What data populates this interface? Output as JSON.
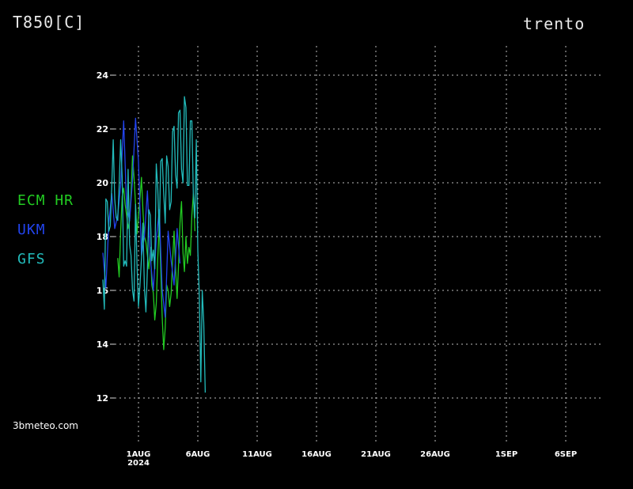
{
  "header": {
    "variable": "T850[C]",
    "location": "trento"
  },
  "credit": "3bmeteo.com",
  "chart_data": {
    "type": "line",
    "title": "T850[C]",
    "xlabel": "",
    "ylabel": "",
    "ylim": [
      11.5,
      25
    ],
    "yticks": [
      12,
      14,
      16,
      18,
      20,
      22,
      24
    ],
    "xlim": [
      "2024-07-28T12:00",
      "2024-09-09T00:00"
    ],
    "xticks": [
      {
        "date": "2024-08-01",
        "label": "1AUG",
        "sublabel": "2024"
      },
      {
        "date": "2024-08-06",
        "label": "6AUG",
        "sublabel": ""
      },
      {
        "date": "2024-08-11",
        "label": "11AUG",
        "sublabel": ""
      },
      {
        "date": "2024-08-16",
        "label": "16AUG",
        "sublabel": ""
      },
      {
        "date": "2024-08-21",
        "label": "21AUG",
        "sublabel": ""
      },
      {
        "date": "2024-08-26",
        "label": "26AUG",
        "sublabel": ""
      },
      {
        "date": "2024-09-01",
        "label": "1SEP",
        "sublabel": ""
      },
      {
        "date": "2024-09-06",
        "label": "6SEP",
        "sublabel": ""
      }
    ],
    "grid": true,
    "legend_position": "left",
    "series": [
      {
        "name": "ECM HR",
        "color": "#22cc22",
        "points": [
          [
            "2024-07-30T06:00",
            17.2
          ],
          [
            "2024-07-30T09:00",
            16.5
          ],
          [
            "2024-07-30T12:00",
            18.2
          ],
          [
            "2024-07-30T15:00",
            19.5
          ],
          [
            "2024-07-30T18:00",
            19.8
          ],
          [
            "2024-07-30T21:00",
            19.2
          ],
          [
            "2024-07-31T00:00",
            18.8
          ],
          [
            "2024-07-31T03:00",
            18.3
          ],
          [
            "2024-07-31T06:00",
            18.6
          ],
          [
            "2024-07-31T09:00",
            19.6
          ],
          [
            "2024-07-31T12:00",
            21.0
          ],
          [
            "2024-07-31T15:00",
            20.2
          ],
          [
            "2024-07-31T18:00",
            19.2
          ],
          [
            "2024-07-31T21:00",
            18.1
          ],
          [
            "2024-08-01T00:00",
            18.8
          ],
          [
            "2024-08-01T03:00",
            19.4
          ],
          [
            "2024-08-01T06:00",
            20.2
          ],
          [
            "2024-08-01T09:00",
            19.0
          ],
          [
            "2024-08-01T12:00",
            18.0
          ],
          [
            "2024-08-01T15:00",
            17.8
          ],
          [
            "2024-08-01T18:00",
            17.3
          ],
          [
            "2024-08-01T21:00",
            16.8
          ],
          [
            "2024-08-02T00:00",
            17.6
          ],
          [
            "2024-08-02T03:00",
            16.2
          ],
          [
            "2024-08-02T06:00",
            15.9
          ],
          [
            "2024-08-02T09:00",
            14.9
          ],
          [
            "2024-08-02T12:00",
            15.5
          ],
          [
            "2024-08-02T15:00",
            17.2
          ],
          [
            "2024-08-02T18:00",
            18.5
          ],
          [
            "2024-08-02T21:00",
            16.8
          ],
          [
            "2024-08-03T00:00",
            15.0
          ],
          [
            "2024-08-03T03:00",
            13.8
          ],
          [
            "2024-08-03T06:00",
            14.6
          ],
          [
            "2024-08-03T09:00",
            16.2
          ],
          [
            "2024-08-03T12:00",
            16.0
          ],
          [
            "2024-08-03T15:00",
            15.4
          ],
          [
            "2024-08-03T18:00",
            15.9
          ],
          [
            "2024-08-03T21:00",
            17.1
          ],
          [
            "2024-08-04T00:00",
            18.2
          ],
          [
            "2024-08-04T03:00",
            16.8
          ],
          [
            "2024-08-04T06:00",
            15.7
          ],
          [
            "2024-08-04T09:00",
            16.9
          ],
          [
            "2024-08-04T12:00",
            18.5
          ],
          [
            "2024-08-04T15:00",
            19.3
          ],
          [
            "2024-08-04T18:00",
            17.4
          ],
          [
            "2024-08-04T21:00",
            16.7
          ],
          [
            "2024-08-05T00:00",
            18.0
          ],
          [
            "2024-08-05T03:00",
            17.0
          ],
          [
            "2024-08-05T06:00",
            17.6
          ],
          [
            "2024-08-05T09:00",
            17.3
          ],
          [
            "2024-08-05T12:00",
            18.8
          ],
          [
            "2024-08-05T15:00",
            19.6
          ],
          [
            "2024-08-05T18:00",
            18.2
          ]
        ]
      },
      {
        "name": "UKM",
        "color": "#2244ee",
        "points": [
          [
            "2024-07-29T00:00",
            17.4
          ],
          [
            "2024-07-29T06:00",
            16.1
          ],
          [
            "2024-07-29T12:00",
            18.5
          ],
          [
            "2024-07-29T18:00",
            19.6
          ],
          [
            "2024-07-30T00:00",
            18.3
          ],
          [
            "2024-07-30T06:00",
            18.8
          ],
          [
            "2024-07-30T12:00",
            19.9
          ],
          [
            "2024-07-30T18:00",
            22.3
          ],
          [
            "2024-07-31T00:00",
            19.1
          ],
          [
            "2024-07-31T06:00",
            18.6
          ],
          [
            "2024-07-31T12:00",
            20.1
          ],
          [
            "2024-07-31T18:00",
            22.4
          ],
          [
            "2024-08-01T00:00",
            20.8
          ],
          [
            "2024-08-01T06:00",
            17.3
          ],
          [
            "2024-08-01T12:00",
            18.0
          ],
          [
            "2024-08-01T18:00",
            19.7
          ],
          [
            "2024-08-02T00:00",
            17.2
          ],
          [
            "2024-08-02T06:00",
            16.0
          ],
          [
            "2024-08-02T12:00",
            17.9
          ],
          [
            "2024-08-02T18:00",
            19.0
          ],
          [
            "2024-08-03T00:00",
            16.0
          ],
          [
            "2024-08-03T06:00",
            15.0
          ],
          [
            "2024-08-03T12:00",
            18.2
          ],
          [
            "2024-08-03T18:00",
            17.1
          ],
          [
            "2024-08-04T00:00",
            16.2
          ],
          [
            "2024-08-04T06:00",
            18.3
          ],
          [
            "2024-08-04T12:00",
            17.0
          ]
        ]
      },
      {
        "name": "GFS",
        "color": "#22bbbb",
        "points": [
          [
            "2024-07-29T00:00",
            16.4
          ],
          [
            "2024-07-29T03:00",
            15.3
          ],
          [
            "2024-07-29T06:00",
            19.4
          ],
          [
            "2024-07-29T09:00",
            19.3
          ],
          [
            "2024-07-29T12:00",
            18.2
          ],
          [
            "2024-07-29T15:00",
            18.4
          ],
          [
            "2024-07-29T18:00",
            19.9
          ],
          [
            "2024-07-29T21:00",
            21.6
          ],
          [
            "2024-07-30T00:00",
            19.4
          ],
          [
            "2024-07-30T03:00",
            18.7
          ],
          [
            "2024-07-30T06:00",
            18.6
          ],
          [
            "2024-07-30T09:00",
            19.9
          ],
          [
            "2024-07-30T12:00",
            21.6
          ],
          [
            "2024-07-30T15:00",
            20.2
          ],
          [
            "2024-07-30T18:00",
            16.9
          ],
          [
            "2024-07-30T21:00",
            17.1
          ],
          [
            "2024-07-31T00:00",
            16.9
          ],
          [
            "2024-07-31T03:00",
            20.5
          ],
          [
            "2024-07-31T06:00",
            17.7
          ],
          [
            "2024-07-31T09:00",
            17.3
          ],
          [
            "2024-07-31T12:00",
            16.0
          ],
          [
            "2024-07-31T15:00",
            15.6
          ],
          [
            "2024-07-31T18:00",
            19.2
          ],
          [
            "2024-07-31T21:00",
            17.0
          ],
          [
            "2024-08-01T00:00",
            15.4
          ],
          [
            "2024-08-01T03:00",
            16.2
          ],
          [
            "2024-08-01T06:00",
            17.2
          ],
          [
            "2024-08-01T09:00",
            18.5
          ],
          [
            "2024-08-01T12:00",
            16.1
          ],
          [
            "2024-08-01T15:00",
            15.2
          ],
          [
            "2024-08-01T18:00",
            16.8
          ],
          [
            "2024-08-01T21:00",
            19.0
          ],
          [
            "2024-08-02T00:00",
            18.8
          ],
          [
            "2024-08-02T03:00",
            17.1
          ],
          [
            "2024-08-02T06:00",
            17.5
          ],
          [
            "2024-08-02T09:00",
            16.8
          ],
          [
            "2024-08-02T12:00",
            20.7
          ],
          [
            "2024-08-02T15:00",
            19.8
          ],
          [
            "2024-08-02T18:00",
            18.0
          ],
          [
            "2024-08-02T21:00",
            20.8
          ],
          [
            "2024-08-03T00:00",
            20.9
          ],
          [
            "2024-08-03T03:00",
            19.6
          ],
          [
            "2024-08-03T06:00",
            18.5
          ],
          [
            "2024-08-03T09:00",
            21.0
          ],
          [
            "2024-08-03T12:00",
            20.6
          ],
          [
            "2024-08-03T15:00",
            19.0
          ],
          [
            "2024-08-03T18:00",
            19.3
          ],
          [
            "2024-08-03T21:00",
            21.9
          ],
          [
            "2024-08-04T00:00",
            22.1
          ],
          [
            "2024-08-04T03:00",
            20.3
          ],
          [
            "2024-08-04T06:00",
            19.8
          ],
          [
            "2024-08-04T09:00",
            22.6
          ],
          [
            "2024-08-04T12:00",
            22.7
          ],
          [
            "2024-08-04T15:00",
            20.5
          ],
          [
            "2024-08-04T18:00",
            20.0
          ],
          [
            "2024-08-04T21:00",
            23.2
          ],
          [
            "2024-08-05T00:00",
            22.8
          ],
          [
            "2024-08-05T03:00",
            19.9
          ],
          [
            "2024-08-05T06:00",
            19.9
          ],
          [
            "2024-08-05T09:00",
            22.3
          ],
          [
            "2024-08-05T12:00",
            22.3
          ],
          [
            "2024-08-05T15:00",
            19.5
          ],
          [
            "2024-08-05T18:00",
            18.7
          ],
          [
            "2024-08-05T21:00",
            21.6
          ],
          [
            "2024-08-06T00:00",
            17.5
          ],
          [
            "2024-08-06T03:00",
            15.8
          ],
          [
            "2024-08-06T06:00",
            12.6
          ],
          [
            "2024-08-06T09:00",
            16.0
          ],
          [
            "2024-08-06T12:00",
            14.8
          ],
          [
            "2024-08-06T15:00",
            12.2
          ]
        ]
      }
    ]
  }
}
